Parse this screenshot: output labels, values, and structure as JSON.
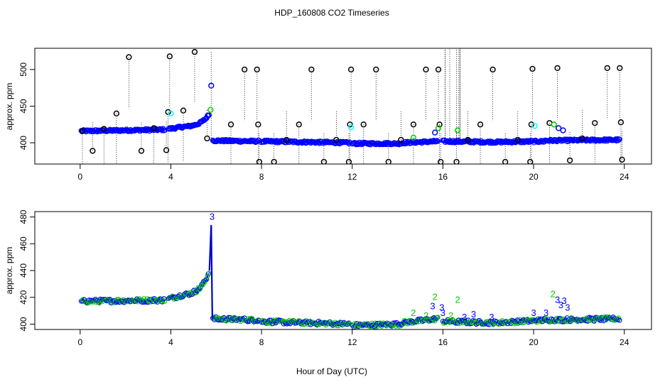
{
  "figure": {
    "title": "HDP_160808  CO2 Timeseries",
    "xlabel": "Hour of Day (UTC)"
  },
  "colors": {
    "black": "#000000",
    "blue": "#0000ff",
    "green": "#00cc00",
    "cyan": "#00ffff",
    "line_blue": "#0000cc"
  },
  "chart_data": [
    {
      "type": "scatter",
      "title": "",
      "xlabel": "",
      "ylabel": "approx. ppm",
      "xlim": [
        -2.0,
        25.2
      ],
      "ylim": [
        371,
        529
      ],
      "x_ticks": [
        0,
        4,
        8,
        12,
        16,
        20,
        24
      ],
      "y_ticks": [
        400,
        450,
        500
      ],
      "outliers": [
        {
          "x": 0.1,
          "y": 416
        },
        {
          "x": 0.55,
          "y": 389
        },
        {
          "x": 1.05,
          "y": 419
        },
        {
          "x": 1.6,
          "y": 440
        },
        {
          "x": 2.15,
          "y": 517
        },
        {
          "x": 2.7,
          "y": 389
        },
        {
          "x": 3.25,
          "y": 420
        },
        {
          "x": 3.8,
          "y": 390
        },
        {
          "x": 3.88,
          "y": 442
        },
        {
          "x": 3.95,
          "y": 518
        },
        {
          "x": 4.55,
          "y": 444
        },
        {
          "x": 5.05,
          "y": 524
        },
        {
          "x": 5.6,
          "y": 406
        },
        {
          "x": 6.65,
          "y": 425
        },
        {
          "x": 7.25,
          "y": 500
        },
        {
          "x": 7.8,
          "y": 500
        },
        {
          "x": 7.85,
          "y": 425
        },
        {
          "x": 7.9,
          "y": 374
        },
        {
          "x": 8.55,
          "y": 374
        },
        {
          "x": 9.1,
          "y": 404
        },
        {
          "x": 9.65,
          "y": 425
        },
        {
          "x": 10.2,
          "y": 500
        },
        {
          "x": 10.75,
          "y": 374
        },
        {
          "x": 11.3,
          "y": 404
        },
        {
          "x": 11.85,
          "y": 374
        },
        {
          "x": 11.9,
          "y": 425
        },
        {
          "x": 11.95,
          "y": 500
        },
        {
          "x": 12.5,
          "y": 425
        },
        {
          "x": 13.05,
          "y": 500
        },
        {
          "x": 13.6,
          "y": 374
        },
        {
          "x": 14.15,
          "y": 404
        },
        {
          "x": 14.7,
          "y": 425
        },
        {
          "x": 15.25,
          "y": 500
        },
        {
          "x": 15.8,
          "y": 500
        },
        {
          "x": 15.85,
          "y": 425
        },
        {
          "x": 15.9,
          "y": 374
        },
        {
          "x": 16.6,
          "y": 374
        },
        {
          "x": 17.1,
          "y": 404
        },
        {
          "x": 17.65,
          "y": 425
        },
        {
          "x": 18.2,
          "y": 500
        },
        {
          "x": 18.75,
          "y": 374
        },
        {
          "x": 19.3,
          "y": 404
        },
        {
          "x": 19.85,
          "y": 374
        },
        {
          "x": 19.9,
          "y": 425
        },
        {
          "x": 19.95,
          "y": 501
        },
        {
          "x": 20.7,
          "y": 427
        },
        {
          "x": 21.05,
          "y": 502
        },
        {
          "x": 21.6,
          "y": 376
        },
        {
          "x": 22.15,
          "y": 406
        },
        {
          "x": 22.7,
          "y": 427
        },
        {
          "x": 23.25,
          "y": 502
        },
        {
          "x": 23.8,
          "y": 502
        },
        {
          "x": 23.85,
          "y": 428
        },
        {
          "x": 23.9,
          "y": 377
        }
      ],
      "highlights": [
        {
          "x": 4.0,
          "y": 440,
          "color": "cyan"
        },
        {
          "x": 5.75,
          "y": 445,
          "color": "green"
        },
        {
          "x": 5.78,
          "y": 478,
          "color": "blue"
        },
        {
          "x": 11.95,
          "y": 421,
          "color": "cyan"
        },
        {
          "x": 14.7,
          "y": 407,
          "color": "green"
        },
        {
          "x": 15.65,
          "y": 414,
          "color": "blue"
        },
        {
          "x": 15.8,
          "y": 420,
          "color": "green"
        },
        {
          "x": 16.65,
          "y": 417,
          "color": "green"
        },
        {
          "x": 20.05,
          "y": 423,
          "color": "cyan"
        },
        {
          "x": 20.9,
          "y": 425,
          "color": "green"
        },
        {
          "x": 21.1,
          "y": 420,
          "color": "blue"
        },
        {
          "x": 21.3,
          "y": 417,
          "color": "blue"
        }
      ],
      "segments": [
        {
          "x0": 0.05,
          "x1": 3.75,
          "y0": 416,
          "y1": 418
        },
        {
          "x0": 3.9,
          "x1": 4.6,
          "y0": 419,
          "y1": 422
        },
        {
          "x0": 4.6,
          "x1": 5.7,
          "y0": 422,
          "y1": 440,
          "curve": "exp"
        },
        {
          "x0": 5.85,
          "x1": 7.9,
          "y0": 403,
          "y1": 402
        },
        {
          "x0": 8.0,
          "x1": 11.9,
          "y0": 402,
          "y1": 400
        },
        {
          "x0": 12.0,
          "x1": 14.2,
          "y0": 399,
          "y1": 399
        },
        {
          "x0": 14.2,
          "x1": 15.8,
          "y0": 400,
          "y1": 402
        },
        {
          "x0": 16.0,
          "x1": 18.3,
          "y0": 402,
          "y1": 401
        },
        {
          "x0": 18.3,
          "x1": 20.5,
          "y0": 401,
          "y1": 402
        },
        {
          "x0": 20.5,
          "x1": 23.8,
          "y0": 403,
          "y1": 404
        }
      ],
      "spikes": [
        {
          "x": 16.1,
          "top": 533
        },
        {
          "x": 16.3,
          "top": 533
        },
        {
          "x": 16.6,
          "top": 533
        },
        {
          "x": 16.7,
          "top": 533
        },
        {
          "x": 16.75,
          "top": 533
        },
        {
          "x": 5.78,
          "top": 524
        }
      ]
    },
    {
      "type": "line",
      "title": "",
      "xlabel": "Hour of Day (UTC)",
      "ylabel": "approx. ppm",
      "xlim": [
        -2.0,
        25.2
      ],
      "ylim": [
        396,
        484
      ],
      "x_ticks": [
        0,
        4,
        8,
        12,
        16,
        20,
        24
      ],
      "y_ticks": [
        400,
        420,
        440,
        460,
        480
      ],
      "segments": [
        {
          "x0": 0.05,
          "x1": 3.75,
          "y0": 417,
          "y1": 418
        },
        {
          "x0": 3.9,
          "x1": 4.6,
          "y0": 419,
          "y1": 422
        },
        {
          "x0": 4.6,
          "x1": 5.7,
          "y0": 422,
          "y1": 440,
          "curve": "exp"
        },
        {
          "x0": 5.85,
          "x1": 7.9,
          "y0": 404,
          "y1": 403
        },
        {
          "x0": 8.0,
          "x1": 11.9,
          "y0": 402,
          "y1": 400
        },
        {
          "x0": 12.0,
          "x1": 14.2,
          "y0": 399,
          "y1": 400
        },
        {
          "x0": 14.2,
          "x1": 15.8,
          "y0": 401,
          "y1": 404
        },
        {
          "x0": 16.0,
          "x1": 18.3,
          "y0": 402,
          "y1": 401
        },
        {
          "x0": 18.3,
          "x1": 20.5,
          "y0": 401,
          "y1": 403
        },
        {
          "x0": 20.5,
          "x1": 23.8,
          "y0": 403,
          "y1": 404
        }
      ],
      "spike": {
        "x": 5.78,
        "y": 474
      },
      "flags": [
        {
          "x": 5.82,
          "y": 478,
          "label": "3",
          "color": "blue"
        },
        {
          "x": 14.7,
          "y": 406,
          "label": "2",
          "color": "green"
        },
        {
          "x": 15.25,
          "y": 404,
          "label": "2",
          "color": "green"
        },
        {
          "x": 15.55,
          "y": 411,
          "label": "3",
          "color": "blue"
        },
        {
          "x": 15.65,
          "y": 418,
          "label": "2",
          "color": "green"
        },
        {
          "x": 15.95,
          "y": 410,
          "label": "3",
          "color": "blue"
        },
        {
          "x": 16.0,
          "y": 406,
          "label": "3",
          "color": "blue"
        },
        {
          "x": 16.35,
          "y": 404,
          "label": "2",
          "color": "green"
        },
        {
          "x": 16.65,
          "y": 416,
          "label": "2",
          "color": "green"
        },
        {
          "x": 16.95,
          "y": 403,
          "label": "3",
          "color": "blue"
        },
        {
          "x": 17.35,
          "y": 405,
          "label": "3",
          "color": "blue"
        },
        {
          "x": 18.15,
          "y": 403,
          "label": "3",
          "color": "blue"
        },
        {
          "x": 20.0,
          "y": 406,
          "label": "3",
          "color": "blue"
        },
        {
          "x": 20.55,
          "y": 406,
          "label": "3",
          "color": "blue"
        },
        {
          "x": 20.85,
          "y": 420,
          "label": "2",
          "color": "green"
        },
        {
          "x": 21.05,
          "y": 416,
          "label": "3",
          "color": "blue"
        },
        {
          "x": 21.2,
          "y": 412,
          "label": "3",
          "color": "blue"
        },
        {
          "x": 21.35,
          "y": 415,
          "label": "3",
          "color": "blue"
        },
        {
          "x": 21.5,
          "y": 410,
          "label": "3",
          "color": "blue"
        }
      ]
    }
  ]
}
